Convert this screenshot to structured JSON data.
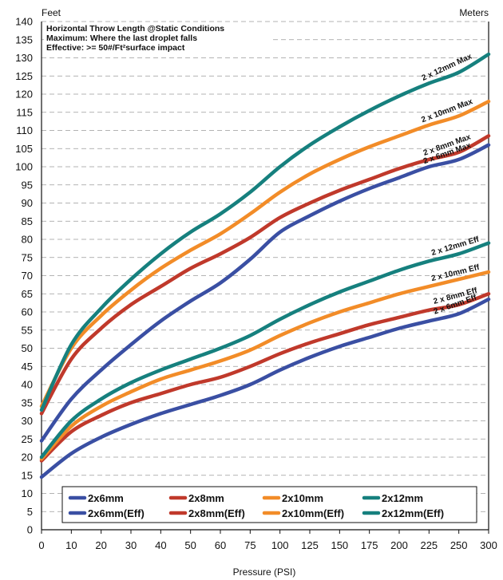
{
  "chart_data": {
    "type": "line",
    "xlabel": "Pressure (PSI)",
    "y_unit_left": "Feet",
    "y_unit_right": "Meters",
    "notes": [
      "Horizontal Throw Length @Static Conditions",
      "Maximum: Where the last droplet falls",
      "Effective: >= 50#/Ft²surface impact"
    ],
    "xlim": [
      0,
      300
    ],
    "ylim": [
      0,
      140
    ],
    "x_ticks": [
      0,
      10,
      20,
      30,
      40,
      50,
      60,
      75,
      100,
      125,
      150,
      175,
      200,
      225,
      250,
      300
    ],
    "y_ticks": [
      0,
      5,
      10,
      15,
      20,
      25,
      30,
      35,
      40,
      45,
      50,
      55,
      60,
      65,
      70,
      75,
      80,
      85,
      90,
      95,
      100,
      105,
      110,
      115,
      120,
      125,
      130,
      135,
      140
    ],
    "grid": "horizontal dashed",
    "legend_position": "bottom",
    "series": [
      {
        "name": "2x6mm",
        "color": "#3a4fa3",
        "curve_label": "2 x 6mm Max",
        "x": [
          0,
          10,
          20,
          30,
          40,
          50,
          60,
          75,
          100,
          125,
          150,
          175,
          200,
          225,
          250,
          300
        ],
        "y": [
          24.5,
          36,
          44,
          51,
          57.5,
          63,
          68,
          74.5,
          82,
          86.5,
          90.5,
          94,
          97,
          100,
          102,
          106
        ]
      },
      {
        "name": "2x8mm",
        "color": "#c0392b",
        "curve_label": "2 x 8mm Max",
        "x": [
          0,
          10,
          20,
          30,
          40,
          50,
          60,
          75,
          100,
          125,
          150,
          175,
          200,
          225,
          250,
          300
        ],
        "y": [
          32,
          47,
          55.5,
          62,
          67,
          72,
          76,
          80.5,
          86,
          90,
          93.5,
          96.5,
          99.5,
          102,
          104,
          108.5
        ]
      },
      {
        "name": "2x10mm",
        "color": "#f28c28",
        "curve_label": "2 x 10mm Max",
        "x": [
          0,
          10,
          20,
          30,
          40,
          50,
          60,
          75,
          100,
          125,
          150,
          175,
          200,
          225,
          250,
          300
        ],
        "y": [
          34,
          50,
          59,
          66,
          72,
          77,
          81.5,
          87,
          93,
          98,
          102,
          105.5,
          108.5,
          111.5,
          114,
          118
        ]
      },
      {
        "name": "2x12mm",
        "color": "#16807e",
        "curve_label": "2 x 12mm Max",
        "x": [
          0,
          10,
          20,
          30,
          40,
          50,
          60,
          75,
          100,
          125,
          150,
          175,
          200,
          225,
          250,
          300
        ],
        "y": [
          33,
          51,
          61,
          69,
          76,
          82,
          87,
          93,
          100,
          106,
          111,
          115.5,
          119.5,
          123,
          126,
          131
        ]
      },
      {
        "name": "2x6mm(Eff)",
        "color": "#3a4fa3",
        "curve_label": "2 x 6mm Eff",
        "x": [
          0,
          10,
          20,
          30,
          40,
          50,
          60,
          75,
          100,
          125,
          150,
          175,
          200,
          225,
          250,
          300
        ],
        "y": [
          14.5,
          21,
          25.5,
          29,
          32,
          34.5,
          37,
          40,
          44,
          47.5,
          50.5,
          53,
          55.5,
          57.5,
          59.5,
          63.5
        ]
      },
      {
        "name": "2x8mm(Eff)",
        "color": "#c0392b",
        "curve_label": "2 x 8mm Eff",
        "x": [
          0,
          10,
          20,
          30,
          40,
          50,
          60,
          75,
          100,
          125,
          150,
          175,
          200,
          225,
          250,
          300
        ],
        "y": [
          19,
          27,
          31.5,
          35,
          37.5,
          40,
          42,
          45,
          48.5,
          51.5,
          54,
          56.5,
          58.5,
          60.5,
          62,
          65
        ]
      },
      {
        "name": "2x10mm(Eff)",
        "color": "#f28c28",
        "curve_label": "2 x 10mm Eff",
        "x": [
          0,
          10,
          20,
          30,
          40,
          50,
          60,
          75,
          100,
          125,
          150,
          175,
          200,
          225,
          250,
          300
        ],
        "y": [
          19.5,
          28.5,
          34,
          38,
          41.5,
          44,
          46.5,
          49.5,
          53.5,
          57,
          60,
          62.5,
          65,
          67,
          69,
          71
        ]
      },
      {
        "name": "2x12mm(Eff)",
        "color": "#16807e",
        "curve_label": "2 x 12mm Eff",
        "x": [
          0,
          10,
          20,
          30,
          40,
          50,
          60,
          75,
          100,
          125,
          150,
          175,
          200,
          225,
          250,
          300
        ],
        "y": [
          20,
          30,
          36,
          40.5,
          44,
          47,
          50,
          53.5,
          58,
          62,
          65.5,
          68.5,
          71.5,
          74,
          76,
          79
        ]
      }
    ]
  }
}
